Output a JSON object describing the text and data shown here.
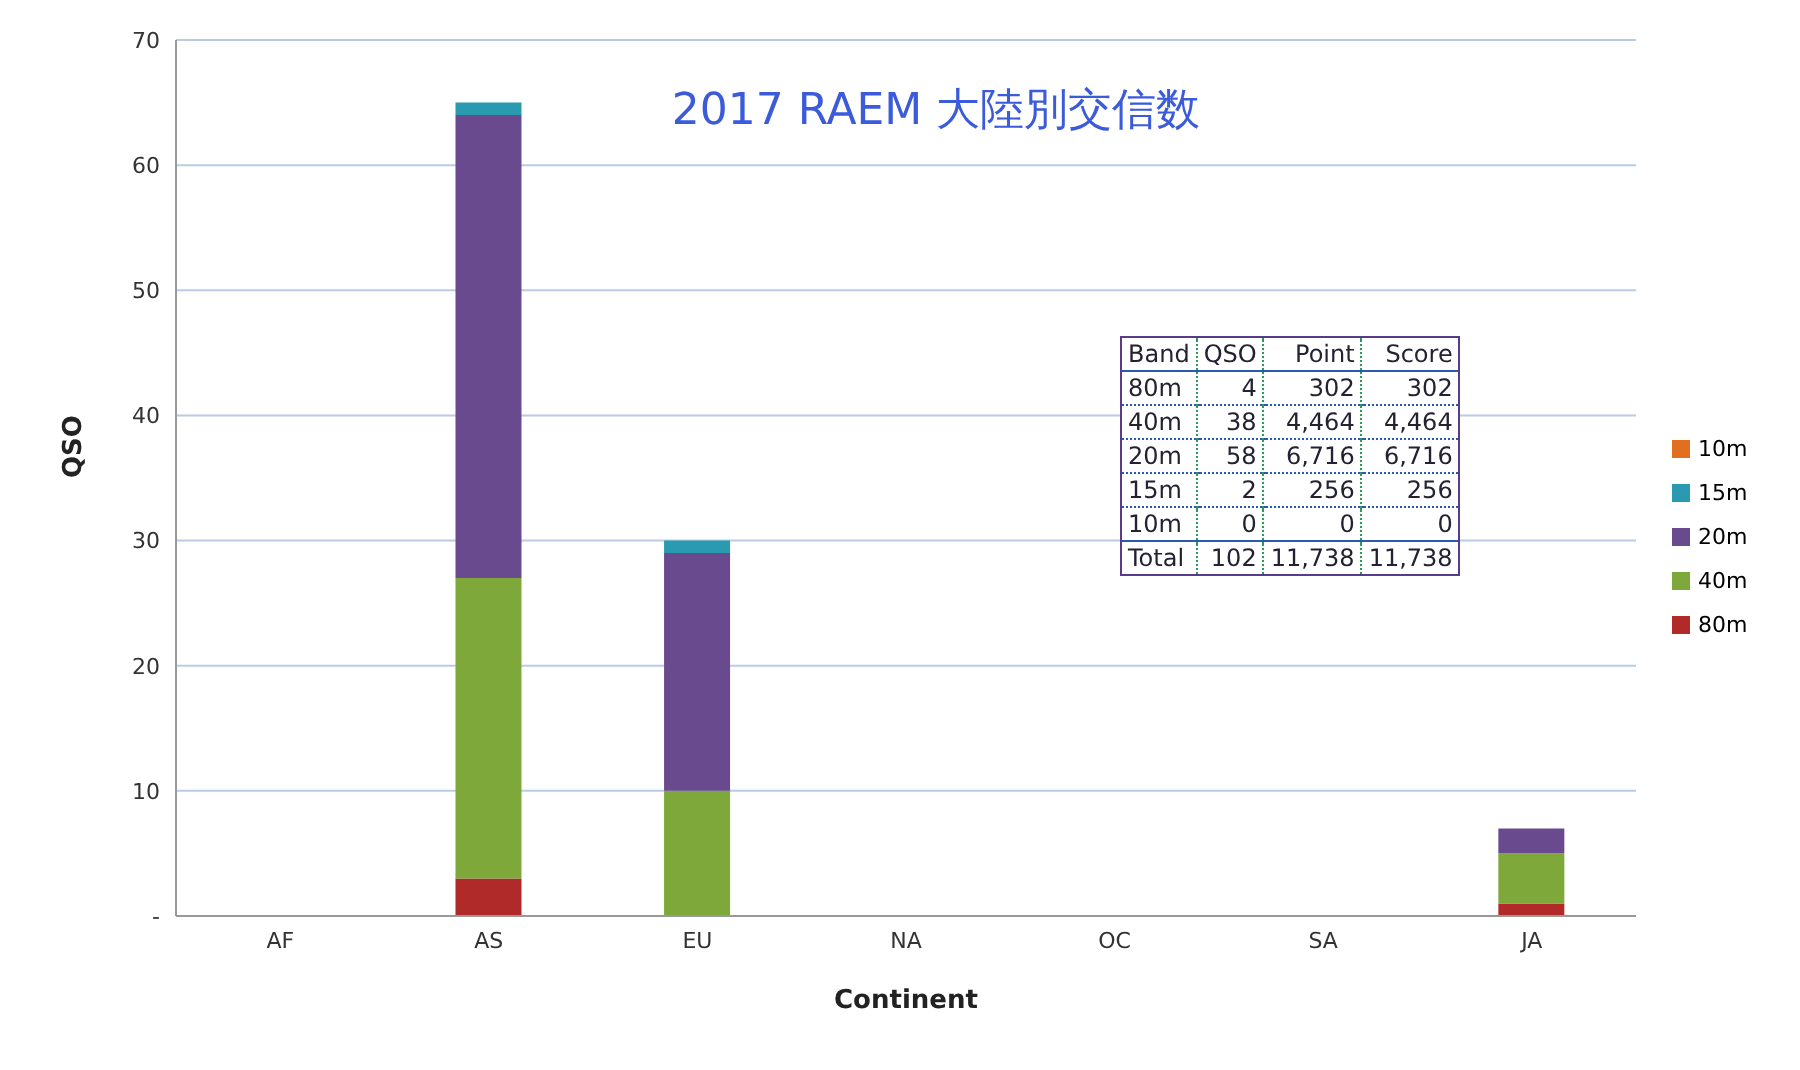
{
  "chart_data": [
    {
      "type": "bar",
      "title": "2017 RAEM 大陸別交信数",
      "xlabel": "Continent",
      "ylabel": "QSO",
      "categories": [
        "AF",
        "AS",
        "EU",
        "NA",
        "OC",
        "SA",
        "JA"
      ],
      "stacked": true,
      "ylim": [
        0,
        70
      ],
      "yticks": [
        {
          "value": 0,
          "label": "-"
        },
        10,
        20,
        30,
        40,
        50,
        60,
        70
      ],
      "grid": "y",
      "legend": "right",
      "series": [
        {
          "name": "80m",
          "color": "#b02a2a",
          "values": [
            0,
            3,
            0,
            0,
            0,
            0,
            1
          ]
        },
        {
          "name": "40m",
          "color": "#7fa83a",
          "values": [
            0,
            24,
            10,
            0,
            0,
            0,
            4
          ]
        },
        {
          "name": "20m",
          "color": "#6a4a8e",
          "values": [
            0,
            37,
            19,
            0,
            0,
            0,
            2
          ]
        },
        {
          "name": "15m",
          "color": "#2a9ab0",
          "values": [
            0,
            1,
            1,
            0,
            0,
            0,
            0
          ]
        },
        {
          "name": "10m",
          "color": "#e07020",
          "values": [
            0,
            0,
            0,
            0,
            0,
            0,
            0
          ]
        }
      ]
    },
    {
      "type": "other",
      "annotations": [
        "Band",
        "QSO",
        "Point",
        "Score",
        "80m",
        "4",
        "302",
        "302",
        "40m",
        "38",
        "4,464",
        "4,464",
        "20m",
        "58",
        "6,716",
        "6,716",
        "15m",
        "2",
        "256",
        "256",
        "10m",
        "0",
        "0",
        "0",
        "Total",
        "102",
        "11,738",
        "11,738"
      ]
    }
  ]
}
